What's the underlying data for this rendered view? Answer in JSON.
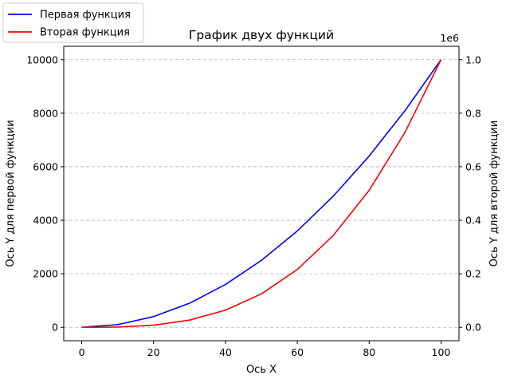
{
  "chart_data": {
    "type": "line",
    "title": "График двух функций",
    "xlabel": "Ось X",
    "ylabel_left": "Ось Y для первой функции",
    "ylabel_right": "Ось Y для второй функции",
    "xlim": [
      -5,
      105
    ],
    "ylim_left": [
      -500,
      10500
    ],
    "ylim_right": [
      -0.05,
      1.05
    ],
    "right_axis_offset_text": "1e6",
    "x_ticks": [
      0,
      20,
      40,
      60,
      80,
      100
    ],
    "y_left_ticks": [
      0,
      2000,
      4000,
      6000,
      8000,
      10000
    ],
    "y_right_ticks": [
      "0.0",
      "0.2",
      "0.4",
      "0.6",
      "0.8",
      "1.0"
    ],
    "grid": "horizontal dashed",
    "legend_position": "top-left",
    "series": [
      {
        "name": "Первая функция",
        "color": "#0000ff",
        "axis": "left",
        "x": [
          0,
          10,
          20,
          30,
          40,
          50,
          60,
          70,
          80,
          90,
          100
        ],
        "y": [
          0,
          100,
          400,
          900,
          1600,
          2500,
          3600,
          4900,
          6400,
          8100,
          10000
        ]
      },
      {
        "name": "Вторая функция",
        "color": "#ff0000",
        "axis": "right",
        "x": [
          0,
          10,
          20,
          30,
          40,
          50,
          60,
          70,
          80,
          90,
          100
        ],
        "y": [
          0,
          0.001,
          0.008,
          0.027,
          0.064,
          0.125,
          0.216,
          0.343,
          0.512,
          0.729,
          1.0
        ]
      }
    ]
  }
}
